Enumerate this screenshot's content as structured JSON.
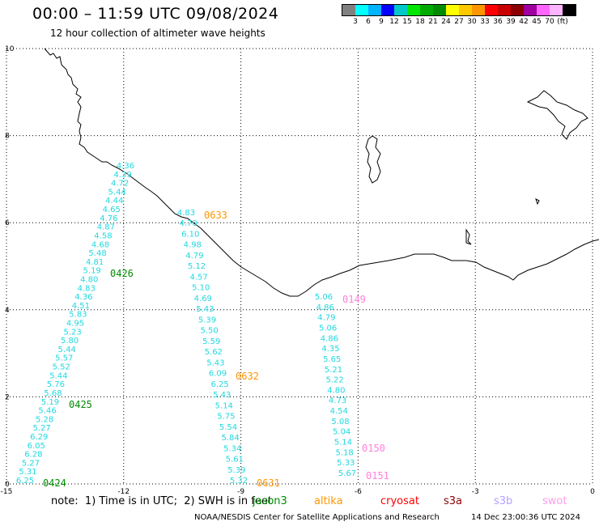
{
  "title": "00:00 – 11:59 UTC 09/08/2024",
  "subtitle": "12 hour collection of altimeter wave heights",
  "legend": {
    "unit": "(ft)",
    "colors": [
      "#808080",
      "#00ffff",
      "#00b4ff",
      "#0000ff",
      "#00c8c8",
      "#00e600",
      "#00aa00",
      "#008c00",
      "#ffff00",
      "#ffc800",
      "#ff9600",
      "#ff0000",
      "#c80000",
      "#8c0000",
      "#a000a0",
      "#ff64ff",
      "#ffb4ff",
      "#000000"
    ],
    "labels": [
      "3",
      "6",
      "9",
      "12",
      "15",
      "18",
      "21",
      "24",
      "27",
      "30",
      "33",
      "36",
      "39",
      "42",
      "45",
      "70",
      "(ft)"
    ]
  },
  "axes": {
    "lon_ticks": [
      "-15",
      "-12",
      "-9",
      "-6",
      "-3",
      "0"
    ],
    "lat_ticks": [
      "0",
      "2",
      "4",
      "6",
      "8",
      "10"
    ],
    "lon_range": [
      -15,
      0
    ],
    "lat_range": [
      0,
      10
    ]
  },
  "tracks": [
    {
      "color": "#20d8e0",
      "values": [
        "6.25",
        "5.31",
        "5.27",
        "6.28",
        "6.05",
        "6.29",
        "5.27",
        "5.28",
        "5.46",
        "5.19",
        "5.68",
        "5.76",
        "5.44",
        "5.52",
        "5.57",
        "5.44",
        "5.80",
        "5.23",
        "4.95",
        "5.83",
        "4.51",
        "4.36",
        "4.83",
        "4.80",
        "5.19",
        "4.81",
        "5.48",
        "4.68",
        "4.58",
        "4.87",
        "4.76",
        "4.65",
        "4.44",
        "5.44",
        "4.72",
        "4.39",
        "4.36"
      ]
    },
    {
      "color": "#20d8e0",
      "values": [
        "5.32",
        "5.39",
        "5.61",
        "5.34",
        "5.84",
        "5.54",
        "5.75",
        "5.14",
        "5.43",
        "6.25",
        "6.09",
        "5.43",
        "5.62",
        "5.59",
        "5.50",
        "5.39",
        "5.43",
        "4.69",
        "5.10",
        "4.57",
        "5.12",
        "4.79",
        "4.98",
        "6.10",
        "4.70",
        "4.83"
      ]
    },
    {
      "color": "#20d8e0",
      "values": [
        "5.67",
        "5.33",
        "5.18",
        "5.14",
        "5.04",
        "5.08",
        "4.54",
        "4.73",
        "4.80",
        "5.22",
        "5.21",
        "5.65",
        "4.35",
        "4.86",
        "5.06",
        "4.79",
        "4.86",
        "5.06"
      ]
    }
  ],
  "passes": [
    {
      "label": "0424",
      "color": "#008c00"
    },
    {
      "label": "0425",
      "color": "#008c00"
    },
    {
      "label": "0426",
      "color": "#008c00"
    },
    {
      "label": "0631",
      "color": "#ff9600"
    },
    {
      "label": "0632",
      "color": "#ff9600"
    },
    {
      "label": "0633",
      "color": "#ff9600"
    },
    {
      "label": "0151",
      "color": "#ff80d8"
    },
    {
      "label": "0150",
      "color": "#ff80d8"
    },
    {
      "label": "0149",
      "color": "#ff80d8"
    }
  ],
  "footer": {
    "note": "note:  1) Time is in UTC;  2) SWH is in feet",
    "missions": [
      {
        "name": "jason3",
        "color": "#008c00"
      },
      {
        "name": "altika",
        "color": "#ff9600"
      },
      {
        "name": "cryosat",
        "color": "#ff0000"
      },
      {
        "name": "s3a",
        "color": "#8c0000"
      },
      {
        "name": "s3b",
        "color": "#b4a0ff"
      },
      {
        "name": "swot",
        "color": "#ff9ce8"
      }
    ],
    "credit": "NOAA/NESDIS Center for Satellite Applications and Research",
    "timestamp": "14 Dec 23:00:36 UTC 2024"
  }
}
